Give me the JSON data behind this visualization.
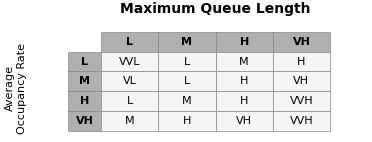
{
  "title": "Maximum Queue Length",
  "col_labels": [
    "L",
    "M",
    "H",
    "VH"
  ],
  "row_labels": [
    "L",
    "M",
    "H",
    "VH"
  ],
  "table_data": [
    [
      "VVL",
      "L",
      "M",
      "H"
    ],
    [
      "VL",
      "L",
      "H",
      "VH"
    ],
    [
      "L",
      "M",
      "H",
      "VVH"
    ],
    [
      "M",
      "H",
      "VH",
      "VVH"
    ]
  ],
  "ylabel": "Average\nOccupancy Rate",
  "header_bg": "#b0b0b0",
  "row_header_bg": "#b0b0b0",
  "cell_bg_light": "#e8e8e8",
  "cell_bg_white": "#f5f5f5",
  "border_color": "#888888",
  "title_fontsize": 10,
  "label_fontsize": 8,
  "cell_fontsize": 8,
  "ylabel_fontsize": 8
}
